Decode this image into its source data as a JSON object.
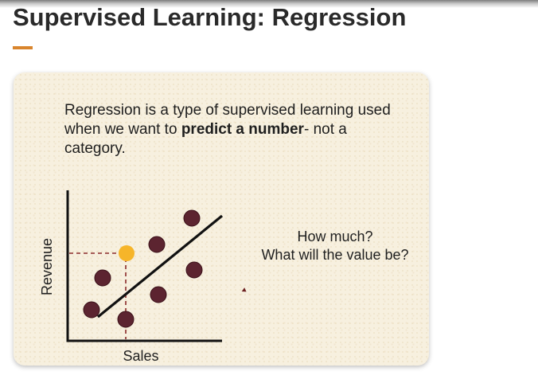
{
  "slide": {
    "title": "Supervised Learning: Regression",
    "accent_color": "#d9852d"
  },
  "card": {
    "definition_pre": "Regression is a type of supervised learning used when we want to ",
    "definition_bold": "predict a number",
    "definition_post": "- not a category.",
    "question_line1": "How much?",
    "question_line2": "What will the value be?"
  },
  "diagram": {
    "ylabel": "Revenue",
    "xlabel": "Sales",
    "point_color": "#5c2430",
    "highlight_color": "#f6b52a",
    "line_color": "#111111"
  }
}
